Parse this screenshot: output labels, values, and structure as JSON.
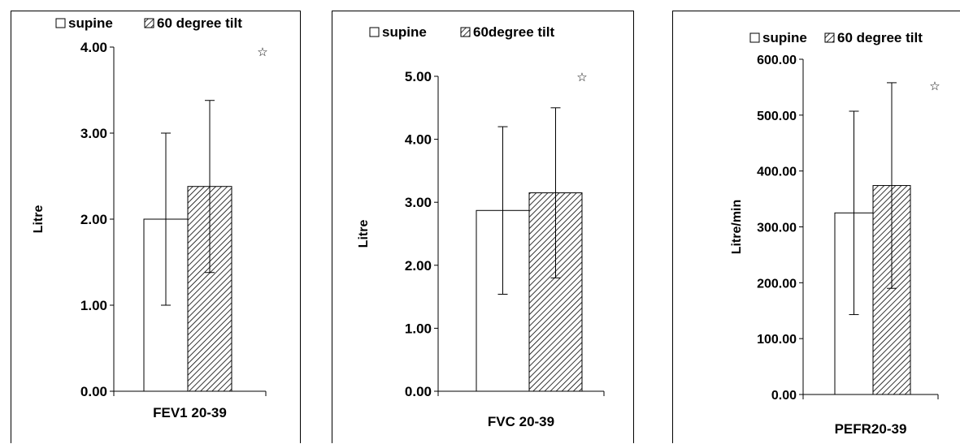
{
  "chart_data": [
    {
      "type": "bar",
      "legend": {
        "entries": [
          "supine",
          "60 degree tilt"
        ],
        "placement": "top"
      },
      "categories": [
        "FEV1 20-39"
      ],
      "xlabel": "FEV1 20-39",
      "ylabel": "Litre",
      "ylim": [
        0,
        4
      ],
      "yticks": [
        "0.00",
        "1.00",
        "2.00",
        "3.00",
        "4.00"
      ],
      "series": [
        {
          "name": "supine",
          "values": [
            2.0
          ],
          "error": [
            1.0
          ],
          "fill": "white"
        },
        {
          "name": "60 degree tilt",
          "values": [
            2.38
          ],
          "error": [
            1.0
          ],
          "fill": "hatched"
        }
      ],
      "annotation": "☆"
    },
    {
      "type": "bar",
      "legend": {
        "entries": [
          "supine",
          "60degree tilt"
        ],
        "placement": "top"
      },
      "categories": [
        "FVC 20-39"
      ],
      "xlabel": "FVC 20-39",
      "ylabel": "Litre",
      "ylim": [
        0,
        5
      ],
      "yticks": [
        "0.00",
        "1.00",
        "2.00",
        "3.00",
        "4.00",
        "5.00"
      ],
      "series": [
        {
          "name": "supine",
          "values": [
            2.87
          ],
          "error": [
            1.33
          ],
          "fill": "white"
        },
        {
          "name": "60degree tilt",
          "values": [
            3.15
          ],
          "error": [
            1.35
          ],
          "fill": "hatched"
        }
      ],
      "annotation": "☆"
    },
    {
      "type": "bar",
      "legend": {
        "entries": [
          "supine",
          "60 degree tilt"
        ],
        "placement": "top"
      },
      "categories": [
        "PEFR20-39"
      ],
      "xlabel": "PEFR20-39",
      "ylabel": "Litre/min",
      "ylim": [
        0,
        600
      ],
      "yticks": [
        "0.00",
        "100.00",
        "200.00",
        "300.00",
        "400.00",
        "500.00",
        "600.00"
      ],
      "series": [
        {
          "name": "supine",
          "values": [
            325
          ],
          "error": [
            182
          ],
          "fill": "white"
        },
        {
          "name": "60 degree tilt",
          "values": [
            374
          ],
          "error": [
            184
          ],
          "fill": "hatched"
        }
      ],
      "annotation": "☆"
    }
  ]
}
